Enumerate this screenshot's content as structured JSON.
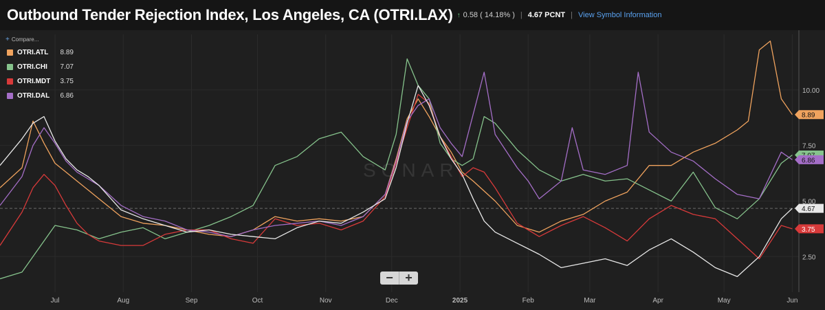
{
  "header": {
    "title": "Outbound Tender Rejection Index, Los Angeles, CA (OTRI.LAX)",
    "change": "0.58 ( 14.18% )",
    "last_value": "4.67 PCNT",
    "info_link": "View Symbol Information"
  },
  "compare_label": "Compare...",
  "zoom": {
    "minus": "−",
    "plus": "+"
  },
  "icons": [
    "up-arrow-icon",
    "plus-icon",
    "minus-icon"
  ],
  "watermark": "SONAR",
  "chart_data": {
    "type": "line",
    "title": "Outbound Tender Rejection Index, Los Angeles, CA (OTRI.LAX)",
    "ylim": [
      0.9,
      12.5
    ],
    "yticks": [
      2.5,
      5.0,
      7.5,
      10.0
    ],
    "ytick_labels": [
      "2.50",
      "5.00",
      "7.50",
      "10.00"
    ],
    "x_ticks": [
      "Jul",
      "Aug",
      "Sep",
      "Oct",
      "Nov",
      "Dec",
      "2025",
      "Feb",
      "Mar",
      "Apr",
      "May",
      "Jun"
    ],
    "x_tick_pos": [
      10,
      41,
      72,
      102,
      133,
      163,
      194,
      225,
      253,
      284,
      314,
      345
    ],
    "x_range": [
      -15,
      348
    ],
    "reference_line": 4.67,
    "series": [
      {
        "name": "OTRI.ATL",
        "color": "#f0a35e",
        "last": "8.89",
        "x": [
          -15,
          -5,
          0,
          5,
          10,
          15,
          20,
          25,
          30,
          40,
          50,
          60,
          70,
          80,
          90,
          100,
          110,
          120,
          130,
          140,
          150,
          160,
          165,
          170,
          175,
          180,
          185,
          190,
          195,
          200,
          210,
          220,
          230,
          240,
          250,
          260,
          270,
          280,
          290,
          300,
          310,
          320,
          325,
          330,
          335,
          340,
          345
        ],
        "values": [
          5.6,
          6.5,
          8.6,
          7.6,
          6.7,
          6.3,
          5.9,
          5.5,
          5.1,
          4.3,
          4.0,
          3.9,
          3.7,
          3.5,
          3.4,
          3.7,
          4.3,
          4.1,
          4.2,
          4.1,
          4.3,
          5.3,
          6.9,
          8.7,
          9.6,
          8.8,
          7.9,
          7.2,
          6.3,
          5.9,
          5.0,
          3.9,
          3.6,
          4.1,
          4.4,
          5.0,
          5.4,
          6.6,
          6.6,
          7.2,
          7.6,
          8.2,
          8.6,
          11.8,
          12.2,
          9.6,
          8.89
        ]
      },
      {
        "name": "OTRI.CHI",
        "color": "#86c38c",
        "last": "7.07",
        "x": [
          -15,
          -5,
          0,
          10,
          20,
          30,
          40,
          50,
          60,
          70,
          80,
          90,
          100,
          110,
          120,
          130,
          140,
          150,
          160,
          165,
          170,
          175,
          180,
          185,
          190,
          195,
          200,
          205,
          210,
          220,
          230,
          240,
          250,
          260,
          270,
          280,
          290,
          300,
          310,
          320,
          330,
          340,
          345
        ],
        "values": [
          1.5,
          1.8,
          2.5,
          3.9,
          3.7,
          3.3,
          3.6,
          3.8,
          3.3,
          3.6,
          3.9,
          4.3,
          4.8,
          6.6,
          7.0,
          7.8,
          8.1,
          7.0,
          6.4,
          8.0,
          11.4,
          10.2,
          9.6,
          7.6,
          6.9,
          6.6,
          6.9,
          8.8,
          8.5,
          7.3,
          6.4,
          5.9,
          6.2,
          5.9,
          6.0,
          5.5,
          5.0,
          6.3,
          4.7,
          4.2,
          5.1,
          6.7,
          7.07
        ]
      },
      {
        "name": "OTRI.MDT",
        "color": "#d83a3a",
        "last": "3.75",
        "x": [
          -15,
          -5,
          0,
          5,
          10,
          15,
          20,
          25,
          30,
          40,
          50,
          60,
          70,
          80,
          90,
          100,
          110,
          120,
          130,
          140,
          150,
          160,
          165,
          170,
          175,
          180,
          185,
          190,
          195,
          200,
          205,
          210,
          220,
          230,
          240,
          250,
          260,
          270,
          280,
          290,
          300,
          310,
          320,
          330,
          340,
          345
        ],
        "values": [
          3.0,
          4.5,
          5.6,
          6.2,
          5.7,
          4.8,
          4.0,
          3.5,
          3.2,
          3.0,
          3.0,
          3.5,
          3.7,
          3.7,
          3.3,
          3.1,
          4.2,
          3.9,
          4.0,
          3.7,
          4.1,
          5.2,
          6.7,
          8.3,
          9.8,
          9.4,
          7.9,
          7.0,
          6.1,
          6.5,
          6.3,
          5.6,
          4.0,
          3.4,
          3.9,
          4.3,
          3.8,
          3.2,
          4.2,
          4.8,
          4.4,
          4.2,
          3.3,
          2.4,
          3.9,
          3.75
        ]
      },
      {
        "name": "OTRI.DAL",
        "color": "#a46ec7",
        "last": "6.86",
        "x": [
          -15,
          -5,
          0,
          5,
          10,
          15,
          20,
          25,
          30,
          40,
          50,
          60,
          70,
          80,
          90,
          100,
          110,
          120,
          130,
          140,
          150,
          160,
          165,
          170,
          175,
          180,
          185,
          190,
          195,
          200,
          205,
          210,
          220,
          225,
          230,
          240,
          245,
          250,
          260,
          270,
          275,
          280,
          290,
          300,
          310,
          320,
          330,
          340,
          345
        ],
        "values": [
          4.8,
          6.1,
          7.5,
          8.3,
          7.6,
          6.8,
          6.3,
          6.0,
          5.7,
          4.8,
          4.3,
          4.1,
          3.7,
          3.6,
          3.4,
          3.7,
          3.9,
          4.0,
          4.1,
          3.9,
          4.3,
          5.3,
          6.8,
          8.6,
          9.3,
          9.6,
          8.3,
          7.6,
          7.0,
          8.9,
          10.8,
          8.0,
          6.5,
          5.9,
          5.1,
          5.9,
          8.3,
          6.4,
          6.2,
          6.6,
          10.8,
          8.1,
          7.2,
          6.8,
          6.0,
          5.3,
          5.1,
          7.2,
          6.86
        ]
      },
      {
        "name": "OTRI.LAX",
        "color": "#e8e8e8",
        "last": "4.67",
        "x": [
          -15,
          -5,
          0,
          5,
          10,
          15,
          20,
          25,
          30,
          40,
          50,
          60,
          70,
          80,
          90,
          100,
          110,
          120,
          130,
          140,
          150,
          160,
          165,
          170,
          175,
          180,
          185,
          190,
          195,
          200,
          205,
          210,
          220,
          230,
          240,
          250,
          260,
          270,
          280,
          290,
          300,
          310,
          320,
          330,
          340,
          345
        ],
        "values": [
          6.6,
          7.8,
          8.5,
          8.8,
          7.7,
          6.9,
          6.4,
          6.1,
          5.7,
          4.6,
          4.2,
          3.9,
          3.6,
          3.7,
          3.5,
          3.4,
          3.3,
          3.8,
          4.1,
          4.0,
          4.5,
          5.1,
          6.5,
          8.5,
          10.2,
          9.3,
          7.9,
          6.9,
          6.2,
          5.1,
          4.1,
          3.6,
          3.1,
          2.6,
          2.0,
          2.2,
          2.4,
          2.1,
          2.8,
          3.3,
          2.7,
          2.0,
          1.6,
          2.5,
          4.2,
          4.67
        ]
      }
    ]
  }
}
